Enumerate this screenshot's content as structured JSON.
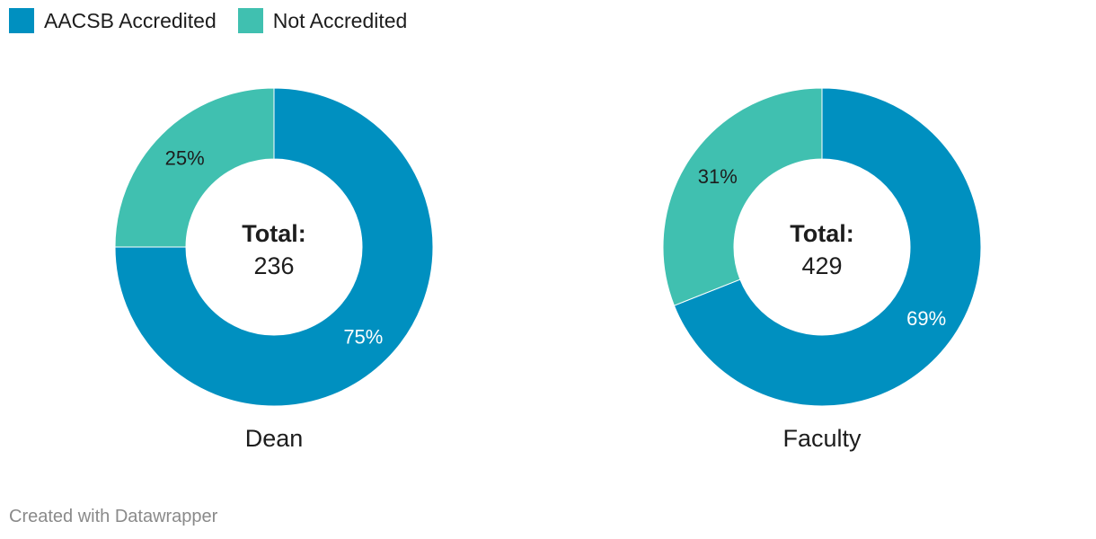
{
  "chart_data": {
    "type": "pie",
    "style": "donut",
    "legend": {
      "position": "top-left",
      "items": [
        {
          "name": "AACSB Accredited",
          "color": "#0090c0"
        },
        {
          "name": "Not Accredited",
          "color": "#40c0b0"
        }
      ]
    },
    "charts": [
      {
        "label": "Dean",
        "center_title": "Total:",
        "center_value": "236",
        "slices": [
          {
            "name": "AACSB Accredited",
            "value": 75,
            "label": "75%"
          },
          {
            "name": "Not Accredited",
            "value": 25,
            "label": "25%"
          }
        ]
      },
      {
        "label": "Faculty",
        "center_title": "Total:",
        "center_value": "429",
        "slices": [
          {
            "name": "AACSB Accredited",
            "value": 69,
            "label": "69%"
          },
          {
            "name": "Not Accredited",
            "value": 31,
            "label": "31%"
          }
        ]
      }
    ]
  },
  "footer": {
    "credit": "Created with Datawrapper"
  }
}
